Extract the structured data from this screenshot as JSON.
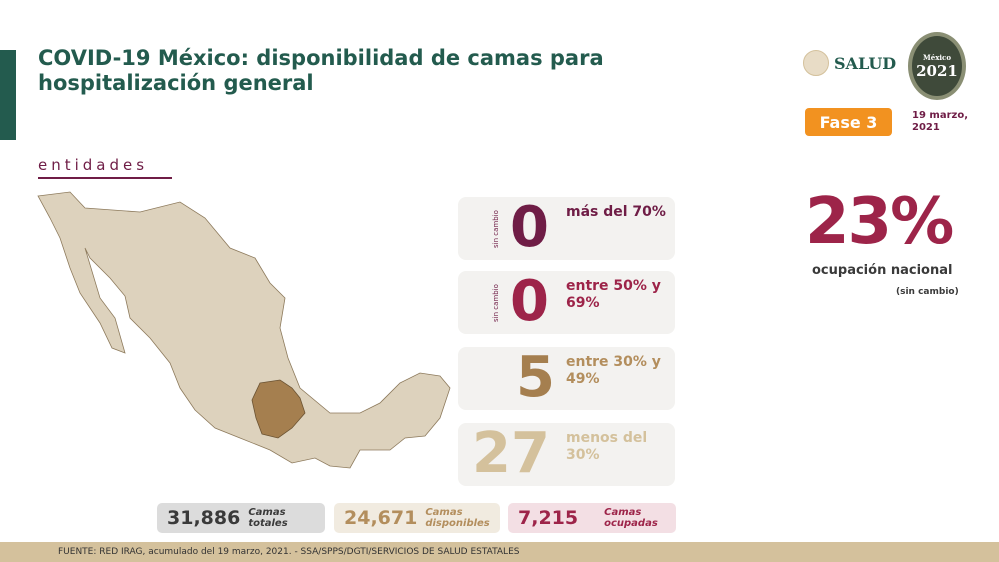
{
  "header": {
    "title": "COVID-19 México: disponibilidad de camas para hospitalización general",
    "subtitle": "entidades"
  },
  "logos": {
    "salud": "SALUD",
    "emblem_text": "México",
    "emblem_year": "2021",
    "emblem_sub": "Año de la Independencia"
  },
  "phase": {
    "label": "Fase 3",
    "color": "#f29220"
  },
  "date": "19 marzo, 2021",
  "categories": [
    {
      "count": "0",
      "label": "más del 70%",
      "change": "sin cambio",
      "color": "#6f1d46"
    },
    {
      "count": "0",
      "label": "entre 50% y 69%",
      "change": "sin cambio",
      "color": "#9d2449"
    },
    {
      "count": "5",
      "label": "entre 30% y 49%",
      "change": "",
      "color": "#a57f4f"
    },
    {
      "count": "27",
      "label": "menos del 30%",
      "change": "",
      "color": "#d4c19c"
    }
  ],
  "national": {
    "value": "23%",
    "label": "ocupación nacional",
    "change": "(sin cambio)"
  },
  "totals": [
    {
      "value": "31,886",
      "label": "Camas totales",
      "color": "#3a3a3a"
    },
    {
      "value": "24,671",
      "label": "Camas disponibles",
      "color": "#b38e5d"
    },
    {
      "value": "7,215",
      "label": "Camas ocupadas",
      "color": "#9d2449"
    }
  ],
  "footer": "FUENTE: RED IRAG, acumulado del 19 marzo, 2021. -  SSA/SPPS/DGTI/SERVICIOS DE SALUD ESTATALES"
}
